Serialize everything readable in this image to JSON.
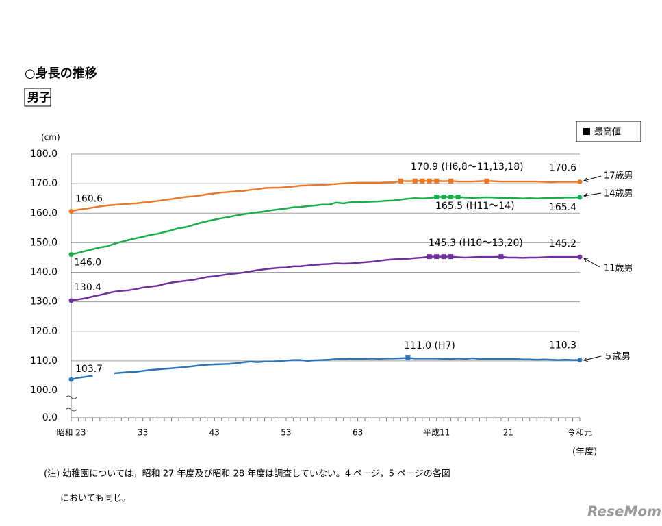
{
  "chart_data": {
    "type": "line",
    "title": "○身長の推移",
    "subtitle": "男子",
    "y_unit": "(cm)",
    "x_unit": "(年度)",
    "max_legend": "最高値",
    "ylim": [
      0,
      180
    ],
    "axis_break": [
      0,
      100
    ],
    "yticks": [
      {
        "value": 0,
        "label": "0.0"
      },
      {
        "value": 100,
        "label": "100.0"
      },
      {
        "value": 110,
        "label": "110.0"
      },
      {
        "value": 120,
        "label": "120.0"
      },
      {
        "value": 130,
        "label": "130.0"
      },
      {
        "value": 140,
        "label": "140.0"
      },
      {
        "value": 150,
        "label": "150.0"
      },
      {
        "value": 160,
        "label": "160.0"
      },
      {
        "value": 170,
        "label": "170.0"
      },
      {
        "value": 180,
        "label": "180.0"
      }
    ],
    "grid": true,
    "categories": [
      "昭和 23",
      null,
      null,
      null,
      null,
      null,
      null,
      null,
      null,
      null,
      "33",
      null,
      null,
      null,
      null,
      null,
      null,
      null,
      null,
      null,
      "43",
      null,
      null,
      null,
      null,
      null,
      null,
      null,
      null,
      null,
      "53",
      null,
      null,
      null,
      null,
      null,
      null,
      null,
      null,
      null,
      "63",
      null,
      null,
      null,
      null,
      null,
      null,
      null,
      null,
      null,
      null,
      "平成11",
      null,
      null,
      null,
      null,
      null,
      null,
      null,
      null,
      null,
      "21",
      null,
      null,
      null,
      null,
      null,
      null,
      null,
      null,
      null,
      "令和元"
    ],
    "series": [
      {
        "name": "17歳男",
        "color": "#e8792a",
        "max_label": "170.9 (H6,8～11,13,18)",
        "values": [
          160.6,
          161.2,
          161.5,
          161.9,
          162.3,
          162.6,
          162.8,
          163.0,
          163.2,
          163.3,
          163.6,
          163.8,
          164.1,
          164.5,
          164.8,
          165.2,
          165.5,
          165.7,
          166.0,
          166.4,
          166.7,
          167.0,
          167.2,
          167.4,
          167.5,
          167.9,
          168.1,
          168.5,
          168.6,
          168.6,
          168.8,
          169.0,
          169.3,
          169.4,
          169.5,
          169.6,
          169.7,
          169.9,
          170.1,
          170.2,
          170.3,
          170.3,
          170.3,
          170.3,
          170.4,
          170.4,
          170.9,
          170.8,
          170.9,
          170.9,
          170.9,
          170.9,
          170.8,
          170.9,
          170.7,
          170.7,
          170.7,
          170.8,
          170.9,
          170.8,
          170.7,
          170.7,
          170.7,
          170.7,
          170.7,
          170.7,
          170.6,
          170.5,
          170.6,
          170.6,
          170.6,
          170.6
        ],
        "value_labels": [
          "160.6",
          null,
          null,
          null,
          null,
          null,
          null,
          null,
          null,
          null,
          null,
          null,
          null,
          null,
          null,
          null,
          null,
          null,
          null,
          null,
          null,
          null,
          null,
          null,
          null,
          null,
          null,
          null,
          null,
          null,
          null,
          null,
          null,
          null,
          null,
          null,
          null,
          null,
          null,
          null,
          null,
          null,
          null,
          null,
          null,
          null,
          null,
          null,
          null,
          null,
          null,
          null,
          null,
          null,
          null,
          null,
          null,
          null,
          null,
          null,
          null,
          null,
          null,
          null,
          null,
          null,
          null,
          null,
          null,
          null,
          null,
          "170.6"
        ]
      },
      {
        "name": "14歳男",
        "color": "#1aad4b",
        "max_label": "165.5 (H11～14)",
        "values": [
          146.0,
          146.6,
          147.2,
          147.8,
          148.4,
          148.8,
          149.6,
          150.3,
          150.9,
          151.5,
          152.0,
          152.6,
          153.0,
          153.6,
          154.2,
          154.9,
          155.3,
          156.0,
          156.7,
          157.3,
          157.8,
          158.3,
          158.7,
          159.2,
          159.6,
          160.0,
          160.3,
          160.6,
          161.0,
          161.3,
          161.6,
          162.0,
          162.1,
          162.4,
          162.6,
          162.9,
          162.9,
          163.6,
          163.3,
          163.7,
          163.7,
          163.8,
          163.9,
          164.0,
          164.2,
          164.3,
          164.6,
          164.9,
          165.1,
          165.0,
          165.1,
          165.5,
          165.5,
          165.5,
          165.5,
          165.3,
          165.2,
          165.3,
          165.4,
          165.3,
          165.2,
          165.2,
          165.1,
          165.0,
          165.1,
          165.0,
          165.1,
          165.1,
          165.2,
          165.3,
          165.3,
          165.4
        ],
        "value_labels": [
          "146.0",
          null,
          null,
          null,
          null,
          null,
          null,
          null,
          null,
          null,
          null,
          null,
          null,
          null,
          null,
          null,
          null,
          null,
          null,
          null,
          null,
          null,
          null,
          null,
          null,
          null,
          null,
          null,
          null,
          null,
          null,
          null,
          null,
          null,
          null,
          null,
          null,
          null,
          null,
          null,
          null,
          null,
          null,
          null,
          null,
          null,
          null,
          null,
          null,
          null,
          null,
          null,
          null,
          null,
          null,
          null,
          null,
          null,
          null,
          null,
          null,
          null,
          null,
          null,
          null,
          null,
          null,
          null,
          null,
          null,
          null,
          "165.4"
        ]
      },
      {
        "name": "11歳男",
        "color": "#7030a0",
        "max_label": "145.3 (H10～13,20)",
        "values": [
          130.4,
          130.8,
          131.2,
          131.8,
          132.3,
          132.9,
          133.4,
          133.7,
          133.9,
          134.3,
          134.8,
          135.1,
          135.4,
          136.0,
          136.5,
          136.8,
          137.1,
          137.4,
          137.9,
          138.4,
          138.6,
          139.0,
          139.4,
          139.6,
          139.9,
          140.3,
          140.7,
          141.0,
          141.3,
          141.5,
          141.6,
          142.0,
          142.0,
          142.3,
          142.5,
          142.7,
          142.8,
          143.0,
          142.9,
          143.0,
          143.2,
          143.4,
          143.6,
          143.9,
          144.2,
          144.4,
          144.5,
          144.6,
          144.8,
          145.0,
          145.3,
          145.3,
          145.3,
          145.3,
          145.1,
          145.0,
          145.1,
          145.2,
          145.2,
          145.2,
          145.3,
          145.0,
          145.0,
          144.9,
          145.0,
          145.0,
          145.1,
          145.2,
          145.2,
          145.2,
          145.2,
          145.2
        ],
        "value_labels": [
          "130.4",
          null,
          null,
          null,
          null,
          null,
          null,
          null,
          null,
          null,
          null,
          null,
          null,
          null,
          null,
          null,
          null,
          null,
          null,
          null,
          null,
          null,
          null,
          null,
          null,
          null,
          null,
          null,
          null,
          null,
          null,
          null,
          null,
          null,
          null,
          null,
          null,
          null,
          null,
          null,
          null,
          null,
          null,
          null,
          null,
          null,
          null,
          null,
          null,
          null,
          null,
          null,
          null,
          null,
          null,
          null,
          null,
          null,
          null,
          null,
          null,
          null,
          null,
          null,
          null,
          null,
          null,
          null,
          null,
          null,
          null,
          "145.2"
        ]
      },
      {
        "name": "５歳男",
        "color": "#2e75b6",
        "max_label": "111.0 (H7)",
        "values": [
          103.7,
          104.3,
          104.6,
          105.0,
          null,
          null,
          105.8,
          106.0,
          106.2,
          106.3,
          106.6,
          106.9,
          107.1,
          107.3,
          107.5,
          107.7,
          107.9,
          108.2,
          108.5,
          108.7,
          108.8,
          108.9,
          109.0,
          109.2,
          109.5,
          109.8,
          109.6,
          109.8,
          109.8,
          109.9,
          110.1,
          110.3,
          110.3,
          110.0,
          110.2,
          110.3,
          110.4,
          110.6,
          110.6,
          110.7,
          110.7,
          110.7,
          110.8,
          110.7,
          110.8,
          110.8,
          110.9,
          111.0,
          110.8,
          110.8,
          110.8,
          110.8,
          110.7,
          110.7,
          110.8,
          110.7,
          110.9,
          110.7,
          110.7,
          110.7,
          110.7,
          110.7,
          110.7,
          110.5,
          110.5,
          110.4,
          110.5,
          110.4,
          110.3,
          110.4,
          110.3,
          110.3
        ],
        "value_labels": [
          "103.7",
          null,
          null,
          null,
          null,
          null,
          null,
          null,
          null,
          null,
          null,
          null,
          null,
          null,
          null,
          null,
          null,
          null,
          null,
          null,
          null,
          null,
          null,
          null,
          null,
          null,
          null,
          null,
          null,
          null,
          null,
          null,
          null,
          null,
          null,
          null,
          null,
          null,
          null,
          null,
          null,
          null,
          null,
          null,
          null,
          null,
          null,
          null,
          null,
          null,
          null,
          null,
          null,
          null,
          null,
          null,
          null,
          null,
          null,
          null,
          null,
          null,
          null,
          null,
          null,
          null,
          null,
          null,
          null,
          null,
          null,
          "110.3"
        ]
      }
    ],
    "notes": [
      "(注) 幼稚園については，昭和 27 年度及び昭和 28 年度は調査していない。4 ページ，5 ページの各図",
      "においても同じ。"
    ],
    "watermark": "ReseMom"
  }
}
